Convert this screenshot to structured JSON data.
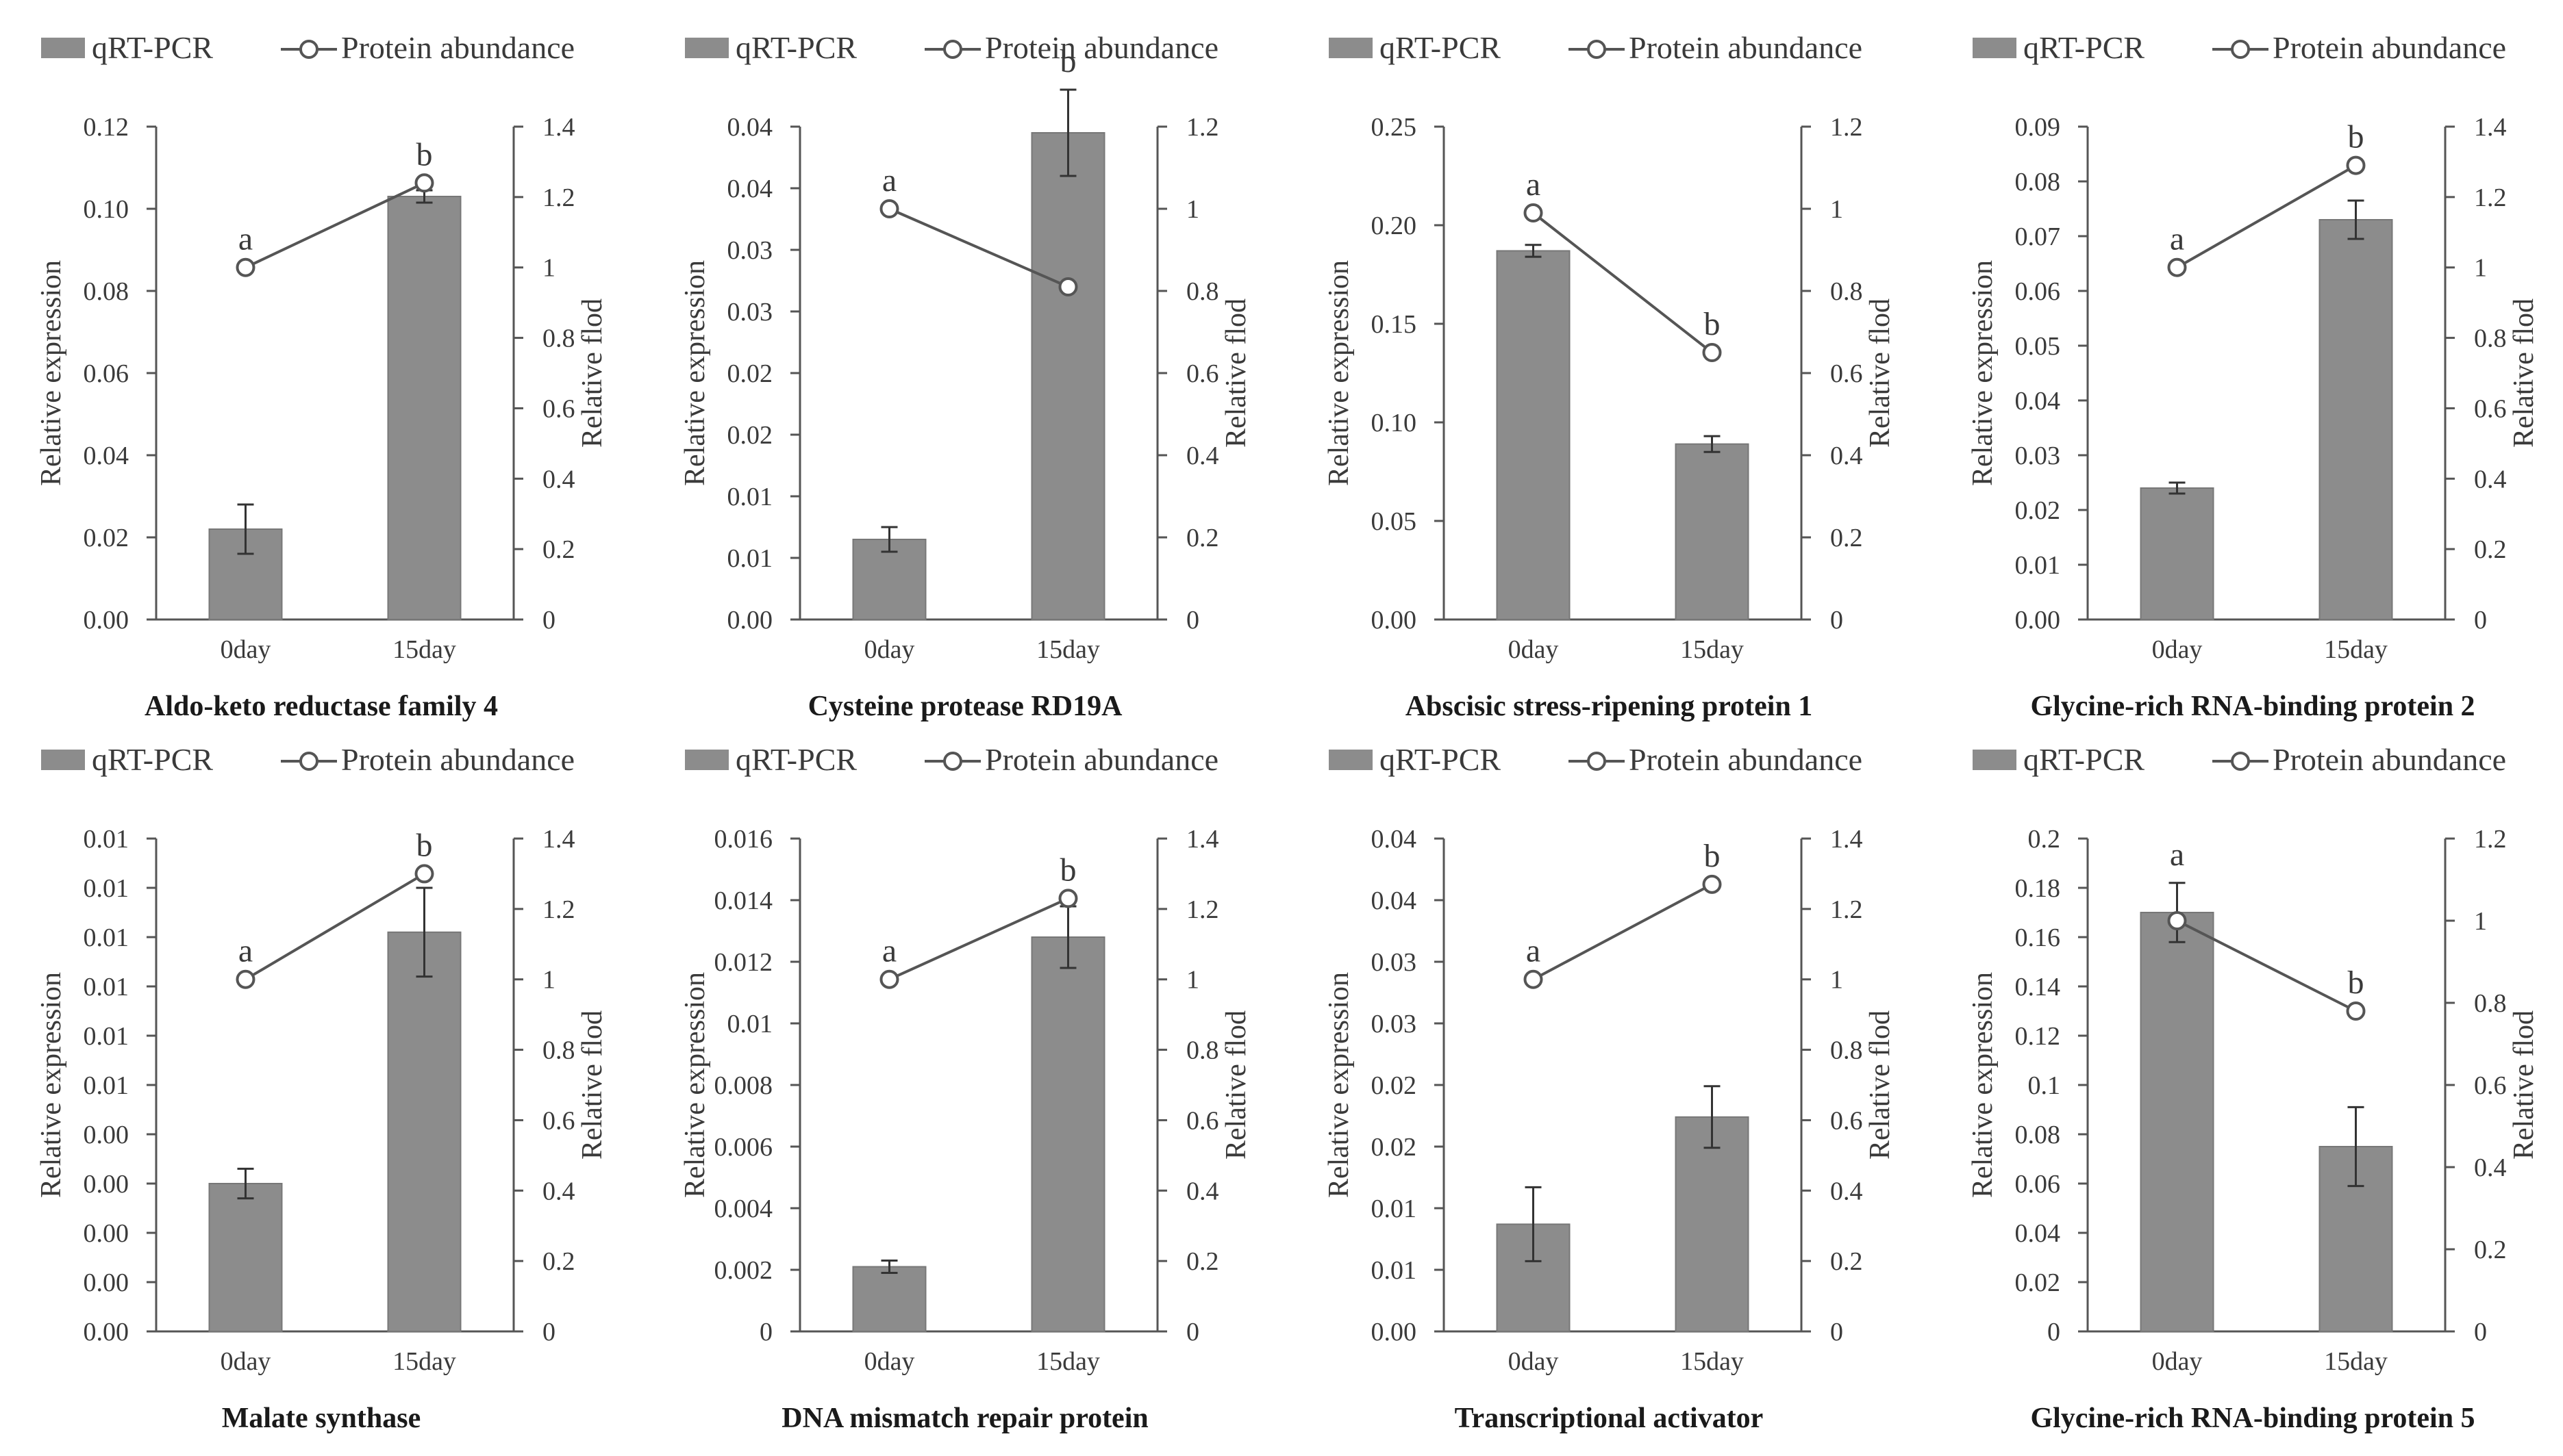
{
  "legend": {
    "bar_label": "qRT-PCR",
    "line_label": "Protein abundance"
  },
  "colors": {
    "bar": "#8c8c8c",
    "bar_edge": "#777777",
    "line": "#555555",
    "marker_fill": "#ffffff",
    "axis": "#555555",
    "text": "#3a3a3a"
  },
  "chart_data": [
    {
      "type": "bar",
      "title": "Aldo-keto reductase family 4",
      "xlabel": "",
      "ylabel": "Relative expression",
      "y2label": "Relative flod",
      "categories": [
        "0day",
        "15day"
      ],
      "yticks": [
        "0.00",
        "0.02",
        "0.04",
        "0.06",
        "0.08",
        "0.10",
        "0.12"
      ],
      "ylim": [
        0,
        0.12
      ],
      "y2ticks": [
        "0",
        "0.2",
        "0.4",
        "0.6",
        "0.8",
        "1",
        "1.2",
        "1.4"
      ],
      "y2lim": [
        0,
        1.4
      ],
      "series": [
        {
          "name": "qRT-PCR",
          "type": "bar",
          "values": [
            0.022,
            0.103
          ],
          "errors": [
            0.006,
            0.0015
          ],
          "letters": [
            "a",
            "b"
          ]
        },
        {
          "name": "Protein abundance",
          "type": "line",
          "axis": "right",
          "values": [
            1.0,
            1.24
          ]
        }
      ]
    },
    {
      "type": "bar",
      "title": "Cysteine protease RD19A",
      "xlabel": "",
      "ylabel": "Relative expression",
      "y2label": "Relative flod",
      "categories": [
        "0day",
        "15day"
      ],
      "yticks": [
        "0.00",
        "0.01",
        "0.01",
        "0.02",
        "0.02",
        "0.03",
        "0.03",
        "0.04",
        "0.04"
      ],
      "ylim": [
        0,
        0.04
      ],
      "y2ticks": [
        "0",
        "0.2",
        "0.4",
        "0.6",
        "0.8",
        "1",
        "1.2"
      ],
      "y2lim": [
        0,
        1.2
      ],
      "series": [
        {
          "name": "qRT-PCR",
          "type": "bar",
          "values": [
            0.0065,
            0.0395
          ],
          "errors": [
            0.001,
            0.0035
          ],
          "letters": [
            "a",
            "b"
          ]
        },
        {
          "name": "Protein abundance",
          "type": "line",
          "axis": "right",
          "values": [
            1.0,
            0.81
          ]
        }
      ]
    },
    {
      "type": "bar",
      "title": "Abscisic stress-ripening protein 1",
      "xlabel": "",
      "ylabel": "Relative expression",
      "y2label": "Relative flod",
      "categories": [
        "0day",
        "15day"
      ],
      "yticks": [
        "0.00",
        "0.05",
        "0.10",
        "0.15",
        "0.20",
        "0.25"
      ],
      "ylim": [
        0,
        0.25
      ],
      "y2ticks": [
        "0",
        "0.2",
        "0.4",
        "0.6",
        "0.8",
        "1",
        "1.2"
      ],
      "y2lim": [
        0,
        1.2
      ],
      "series": [
        {
          "name": "qRT-PCR",
          "type": "bar",
          "values": [
            0.187,
            0.089
          ],
          "errors": [
            0.003,
            0.004
          ],
          "letters": [
            "a",
            "b"
          ]
        },
        {
          "name": "Protein abundance",
          "type": "line",
          "axis": "right",
          "values": [
            0.99,
            0.65
          ]
        }
      ]
    },
    {
      "type": "bar",
      "title": "Glycine-rich RNA-binding protein 2",
      "xlabel": "",
      "ylabel": "Relative expression",
      "y2label": "Relative flod",
      "categories": [
        "0day",
        "15day"
      ],
      "yticks": [
        "0.00",
        "0.01",
        "0.02",
        "0.03",
        "0.04",
        "0.05",
        "0.06",
        "0.07",
        "0.08",
        "0.09"
      ],
      "ylim": [
        0,
        0.09
      ],
      "y2ticks": [
        "0",
        "0.2",
        "0.4",
        "0.6",
        "0.8",
        "1",
        "1.2",
        "1.4"
      ],
      "y2lim": [
        0,
        1.4
      ],
      "series": [
        {
          "name": "qRT-PCR",
          "type": "bar",
          "values": [
            0.024,
            0.073
          ],
          "errors": [
            0.001,
            0.0035
          ],
          "letters": [
            "a",
            "b"
          ]
        },
        {
          "name": "Protein abundance",
          "type": "line",
          "axis": "right",
          "values": [
            1.0,
            1.29
          ]
        }
      ]
    },
    {
      "type": "bar",
      "title": "Malate synthase",
      "xlabel": "",
      "ylabel": "Relative expression",
      "y2label": "Relative flod",
      "categories": [
        "0day",
        "15day"
      ],
      "yticks": [
        "0.00",
        "0.00",
        "0.00",
        "0.00",
        "0.00",
        "0.01",
        "0.01",
        "0.01",
        "0.01",
        "0.01",
        "0.01"
      ],
      "ylim": [
        0,
        0.01
      ],
      "y2ticks": [
        "0",
        "0.2",
        "0.4",
        "0.6",
        "0.8",
        "1",
        "1.2",
        "1.4"
      ],
      "y2lim": [
        0,
        1.4
      ],
      "series": [
        {
          "name": "qRT-PCR",
          "type": "bar",
          "values": [
            0.003,
            0.0081
          ],
          "errors": [
            0.0003,
            0.0009
          ],
          "letters": [
            "a",
            "b"
          ]
        },
        {
          "name": "Protein abundance",
          "type": "line",
          "axis": "right",
          "values": [
            1.0,
            1.3
          ]
        }
      ]
    },
    {
      "type": "bar",
      "title": "DNA mismatch repair protein",
      "xlabel": "",
      "ylabel": "Relative expression",
      "y2label": "Relative flod",
      "categories": [
        "0day",
        "15day"
      ],
      "yticks": [
        "0",
        "0.002",
        "0.004",
        "0.006",
        "0.008",
        "0.01",
        "0.012",
        "0.014",
        "0.016"
      ],
      "ylim": [
        0,
        0.016
      ],
      "y2ticks": [
        "0",
        "0.2",
        "0.4",
        "0.6",
        "0.8",
        "1",
        "1.2",
        "1.4"
      ],
      "y2lim": [
        0,
        1.4
      ],
      "series": [
        {
          "name": "qRT-PCR",
          "type": "bar",
          "values": [
            0.0021,
            0.0128
          ],
          "errors": [
            0.0002,
            0.001
          ],
          "letters": [
            "a",
            "b"
          ]
        },
        {
          "name": "Protein abundance",
          "type": "line",
          "axis": "right",
          "values": [
            1.0,
            1.23
          ]
        }
      ]
    },
    {
      "type": "bar",
      "title": "Transcriptional activator",
      "xlabel": "",
      "ylabel": "Relative expression",
      "y2label": "Relative flod",
      "categories": [
        "0day",
        "15day"
      ],
      "yticks": [
        "0.00",
        "0.01",
        "0.01",
        "0.02",
        "0.02",
        "0.03",
        "0.03",
        "0.04",
        "0.04"
      ],
      "ylim": [
        0,
        0.04
      ],
      "y2ticks": [
        "0",
        "0.2",
        "0.4",
        "0.6",
        "0.8",
        "1",
        "1.2",
        "1.4"
      ],
      "y2lim": [
        0,
        1.4
      ],
      "series": [
        {
          "name": "qRT-PCR",
          "type": "bar",
          "values": [
            0.0087,
            0.0174
          ],
          "errors": [
            0.003,
            0.0025
          ],
          "letters": [
            "a",
            "b"
          ]
        },
        {
          "name": "Protein abundance",
          "type": "line",
          "axis": "right",
          "values": [
            1.0,
            1.27
          ]
        }
      ]
    },
    {
      "type": "bar",
      "title": "Glycine-rich RNA-binding protein 5",
      "xlabel": "",
      "ylabel": "Relative expression",
      "y2label": "Relative flod",
      "categories": [
        "0day",
        "15day"
      ],
      "yticks": [
        "0",
        "0.02",
        "0.04",
        "0.06",
        "0.08",
        "0.1",
        "0.12",
        "0.14",
        "0.16",
        "0.18",
        "0.2"
      ],
      "ylim": [
        0,
        0.2
      ],
      "y2ticks": [
        "0",
        "0.2",
        "0.4",
        "0.6",
        "0.8",
        "1",
        "1.2"
      ],
      "y2lim": [
        0,
        1.2
      ],
      "series": [
        {
          "name": "qRT-PCR",
          "type": "bar",
          "values": [
            0.17,
            0.075
          ],
          "errors": [
            0.012,
            0.016
          ],
          "letters": [
            "a",
            "b"
          ]
        },
        {
          "name": "Protein abundance",
          "type": "line",
          "axis": "right",
          "values": [
            1.0,
            0.78
          ]
        }
      ]
    }
  ]
}
